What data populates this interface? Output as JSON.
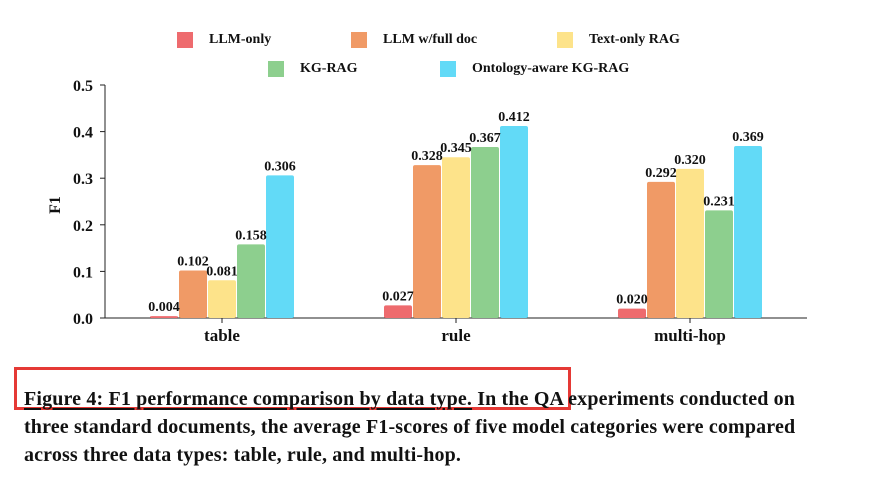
{
  "chart_data": {
    "type": "bar",
    "categories": [
      "table",
      "rule",
      "multi-hop"
    ],
    "series": [
      {
        "name": "LLM-only",
        "color": "#ee6b6e",
        "values": [
          0.004,
          0.027,
          0.02
        ],
        "labels": [
          "0.004",
          "0.027",
          "0.020"
        ]
      },
      {
        "name": "LLM w/full doc",
        "color": "#f09a66",
        "values": [
          0.102,
          0.328,
          0.292
        ],
        "labels": [
          "0.102",
          "0.328",
          "0.292"
        ]
      },
      {
        "name": "Text-only RAG",
        "color": "#fde38a",
        "values": [
          0.081,
          0.345,
          0.32
        ],
        "labels": [
          "0.081",
          "0.345",
          "0.320"
        ]
      },
      {
        "name": "KG-RAG",
        "color": "#8dcf8e",
        "values": [
          0.158,
          0.367,
          0.231
        ],
        "labels": [
          "0.158",
          "0.367",
          "0.231"
        ]
      },
      {
        "name": "Ontology-aware KG-RAG",
        "color": "#62daf7",
        "values": [
          0.306,
          0.412,
          0.369
        ],
        "labels": [
          "0.306",
          "0.412",
          "0.369"
        ]
      }
    ],
    "title": "",
    "xlabel": "",
    "ylabel": "F1",
    "ylim": [
      0,
      0.5
    ],
    "yticks": [
      0.0,
      0.1,
      0.2,
      0.3,
      0.4,
      0.5
    ],
    "ytick_labels": [
      "0.0",
      "0.1",
      "0.2",
      "0.3",
      "0.4",
      "0.5"
    ],
    "grid": false,
    "legend_position": "top-center"
  },
  "caption": {
    "lead": "Figure 4: F1 performance comparison by data type.",
    "body": " In the QA experiments conducted on three standard documents, the average F1-scores of five model categories were compared across three data types: table, rule, and multi-hop."
  },
  "colors": {
    "highlight_box": "#e53935"
  }
}
